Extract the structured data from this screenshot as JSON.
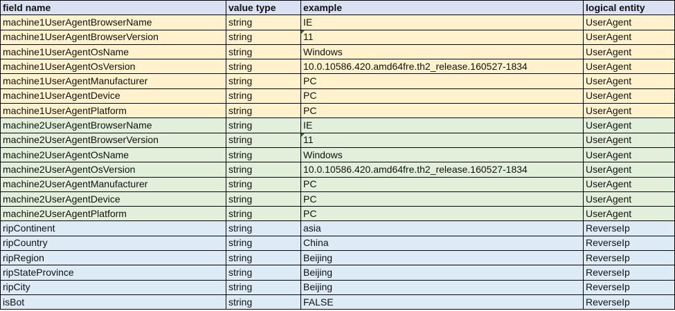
{
  "headers": {
    "field_name": "field name",
    "value_type": "value type",
    "example": "example",
    "logical_entity": "logical entity"
  },
  "colors": {
    "header": "#d9e1f2",
    "useragent1": "#fff2cc",
    "useragent2": "#e2efda",
    "reverseip": "#ddebf7",
    "comment_marker": "#1e7b1e"
  },
  "rows": [
    {
      "field": "machine1UserAgentBrowserName",
      "type": "string",
      "example": "IE",
      "entity": "UserAgent",
      "group": "g-ua1"
    },
    {
      "field": "machine1UserAgentBrowserVersion",
      "type": "string",
      "example": "11",
      "entity": "UserAgent",
      "group": "g-ua1",
      "comment": true
    },
    {
      "field": "machine1UserAgentOsName",
      "type": "string",
      "example": "Windows",
      "entity": "UserAgent",
      "group": "g-ua1"
    },
    {
      "field": "machine1UserAgentOsVersion",
      "type": "string",
      "example": "10.0.10586.420.amd64fre.th2_release.160527-1834",
      "entity": "UserAgent",
      "group": "g-ua1"
    },
    {
      "field": "machine1UserAgentManufacturer",
      "type": "string",
      "example": "PC",
      "entity": "UserAgent",
      "group": "g-ua1"
    },
    {
      "field": "machine1UserAgentDevice",
      "type": "string",
      "example": "PC",
      "entity": "UserAgent",
      "group": "g-ua1"
    },
    {
      "field": "machine1UserAgentPlatform",
      "type": "string",
      "example": "PC",
      "entity": "UserAgent",
      "group": "g-ua1"
    },
    {
      "field": "machine2UserAgentBrowserName",
      "type": "string",
      "example": "IE",
      "entity": "UserAgent",
      "group": "g-ua2"
    },
    {
      "field": "machine2UserAgentBrowserVersion",
      "type": "string",
      "example": "11",
      "entity": "UserAgent",
      "group": "g-ua2",
      "comment": true
    },
    {
      "field": "machine2UserAgentOsName",
      "type": "string",
      "example": "Windows",
      "entity": "UserAgent",
      "group": "g-ua2"
    },
    {
      "field": "machine2UserAgentOsVersion",
      "type": "string",
      "example": "10.0.10586.420.amd64fre.th2_release.160527-1834",
      "entity": "UserAgent",
      "group": "g-ua2"
    },
    {
      "field": "machine2UserAgentManufacturer",
      "type": "string",
      "example": "PC",
      "entity": "UserAgent",
      "group": "g-ua2"
    },
    {
      "field": "machine2UserAgentDevice",
      "type": "string",
      "example": "PC",
      "entity": "UserAgent",
      "group": "g-ua2"
    },
    {
      "field": "machine2UserAgentPlatform",
      "type": "string",
      "example": "PC",
      "entity": "UserAgent",
      "group": "g-ua2"
    },
    {
      "field": "ripContinent",
      "type": "string",
      "example": "asia",
      "entity": "ReverseIp",
      "group": "g-rip"
    },
    {
      "field": "ripCountry",
      "type": "string",
      "example": "China",
      "entity": "ReverseIp",
      "group": "g-rip"
    },
    {
      "field": "ripRegion",
      "type": "string",
      "example": "Beijing",
      "entity": "ReverseIp",
      "group": "g-rip"
    },
    {
      "field": "ripStateProvince",
      "type": "string",
      "example": "Beijing",
      "entity": "ReverseIp",
      "group": "g-rip"
    },
    {
      "field": "ripCity",
      "type": "string",
      "example": "Beijing",
      "entity": "ReverseIp",
      "group": "g-rip"
    },
    {
      "field": "isBot",
      "type": "string",
      "example": "FALSE",
      "entity": "ReverseIp",
      "group": "g-rip"
    }
  ]
}
